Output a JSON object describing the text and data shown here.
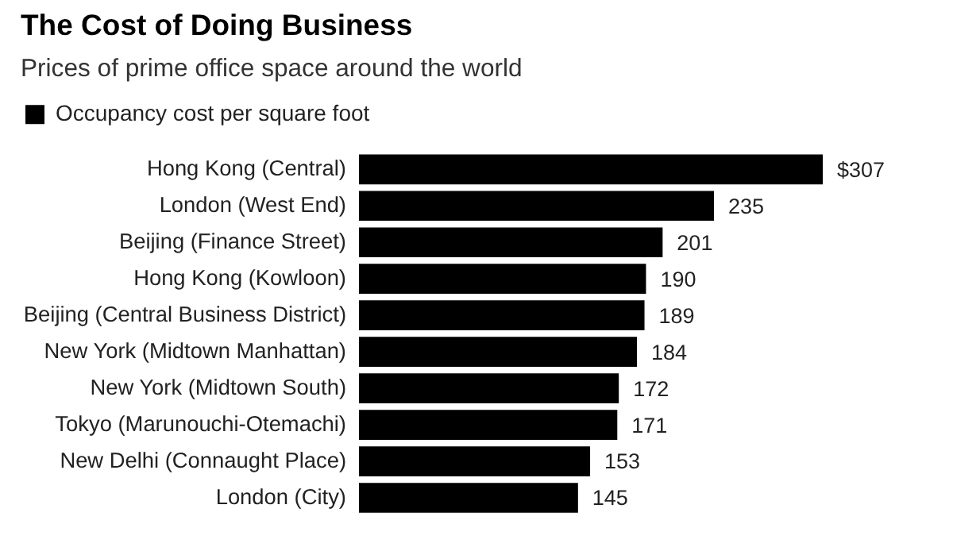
{
  "chart_data": {
    "type": "bar",
    "orientation": "horizontal",
    "title": "The Cost of Doing Business",
    "subtitle": "Prices of prime office space around the world",
    "categories": [
      "Hong Kong (Central)",
      "London (West End)",
      "Beijing (Finance Street)",
      "Hong Kong (Kowloon)",
      "Beijing (Central Business District)",
      "New York (Midtown Manhattan)",
      "New York (Midtown South)",
      "Tokyo (Marunouchi-Otemachi)",
      "New Delhi (Connaught Place)",
      "London (City)"
    ],
    "series": [
      {
        "name": "Occupancy cost per square foot",
        "color": "#000000",
        "values": [
          307,
          235,
          201,
          190,
          189,
          184,
          172,
          171,
          153,
          145
        ],
        "value_labels": [
          "$307",
          "235",
          "201",
          "190",
          "189",
          "184",
          "172",
          "171",
          "153",
          "145"
        ]
      }
    ],
    "legend": "top left"
  }
}
